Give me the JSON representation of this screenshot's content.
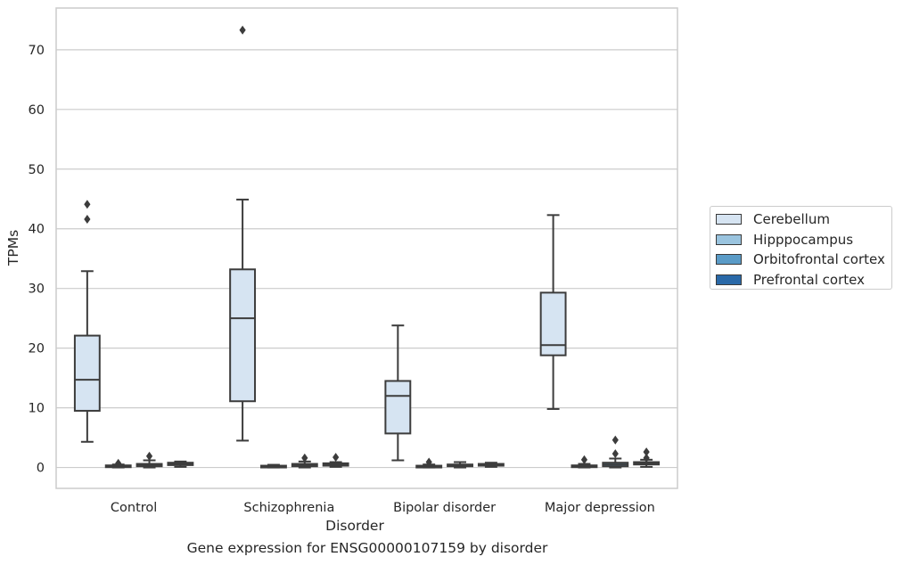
{
  "caption": "Gene expression for ENSG00000107159 by disorder",
  "chart_data": {
    "type": "box",
    "xlabel": "Disorder",
    "ylabel": "TPMs",
    "ylim": [
      -3.5,
      77
    ],
    "yticks": [
      0,
      10,
      20,
      30,
      40,
      50,
      60,
      70
    ],
    "grid": "horizontal",
    "legend_position": "right",
    "categories": [
      "Control",
      "Schizophrenia",
      "Bipolar disorder",
      "Major depression"
    ],
    "series": [
      {
        "name": "Cerebellum",
        "color": "#d6e4f2",
        "boxes": [
          {
            "low": 4.3,
            "q1": 9.5,
            "median": 14.7,
            "q3": 22.1,
            "high": 32.9,
            "outliers": [
              41.6,
              44.1
            ]
          },
          {
            "low": 4.5,
            "q1": 11.1,
            "median": 25.0,
            "q3": 33.2,
            "high": 44.9,
            "outliers": [
              73.3
            ]
          },
          {
            "low": 1.2,
            "q1": 5.7,
            "median": 12.0,
            "q3": 14.5,
            "high": 23.8,
            "outliers": []
          },
          {
            "low": 9.8,
            "q1": 18.8,
            "median": 20.5,
            "q3": 29.3,
            "high": 42.3,
            "outliers": []
          }
        ]
      },
      {
        "name": "Hipppocampus",
        "color": "#9ac4df",
        "boxes": [
          {
            "low": 0.0,
            "q1": 0.1,
            "median": 0.2,
            "q3": 0.35,
            "high": 0.5,
            "outliers": [
              0.7
            ]
          },
          {
            "low": 0.0,
            "q1": 0.1,
            "median": 0.2,
            "q3": 0.3,
            "high": 0.45,
            "outliers": []
          },
          {
            "low": 0.0,
            "q1": 0.1,
            "median": 0.2,
            "q3": 0.3,
            "high": 0.5,
            "outliers": [
              0.9
            ]
          },
          {
            "low": 0.0,
            "q1": 0.1,
            "median": 0.2,
            "q3": 0.35,
            "high": 0.6,
            "outliers": [
              1.3
            ]
          }
        ]
      },
      {
        "name": "Orbitofrontal cortex",
        "color": "#5a9bc7",
        "boxes": [
          {
            "low": 0.0,
            "q1": 0.2,
            "median": 0.4,
            "q3": 0.6,
            "high": 1.2,
            "outliers": [
              1.9
            ]
          },
          {
            "low": 0.0,
            "q1": 0.2,
            "median": 0.4,
            "q3": 0.6,
            "high": 1.0,
            "outliers": [
              1.6
            ]
          },
          {
            "low": 0.0,
            "q1": 0.2,
            "median": 0.3,
            "q3": 0.5,
            "high": 0.9,
            "outliers": []
          },
          {
            "low": 0.0,
            "q1": 0.2,
            "median": 0.5,
            "q3": 0.8,
            "high": 1.5,
            "outliers": [
              2.3,
              4.6
            ]
          }
        ]
      },
      {
        "name": "Prefrontal cortex",
        "color": "#2a69a8",
        "boxes": [
          {
            "low": 0.1,
            "q1": 0.4,
            "median": 0.6,
            "q3": 0.8,
            "high": 1.0,
            "outliers": []
          },
          {
            "low": 0.1,
            "q1": 0.3,
            "median": 0.5,
            "q3": 0.7,
            "high": 0.9,
            "outliers": [
              1.7
            ]
          },
          {
            "low": 0.1,
            "q1": 0.3,
            "median": 0.4,
            "q3": 0.6,
            "high": 0.8,
            "outliers": []
          },
          {
            "low": 0.1,
            "q1": 0.5,
            "median": 0.7,
            "q3": 0.9,
            "high": 1.3,
            "outliers": [
              1.6,
              2.6
            ]
          }
        ]
      }
    ]
  }
}
